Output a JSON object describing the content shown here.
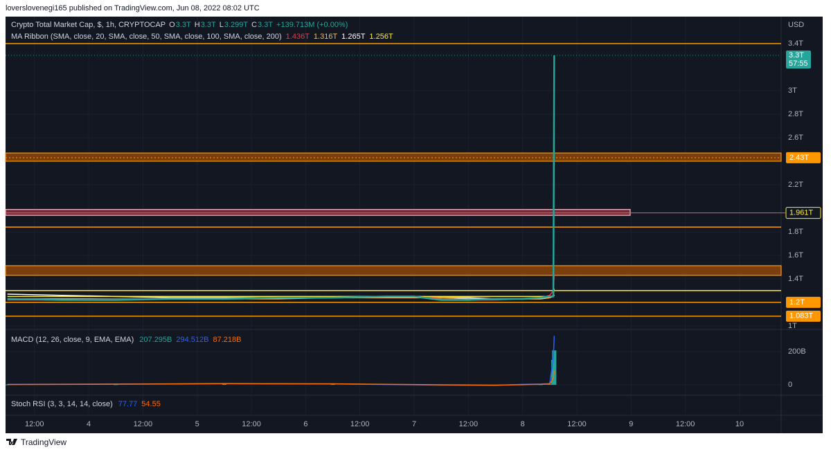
{
  "header": {
    "publisher": "loverslovenegi165 published on TradingView.com, Jun 08, 2022 08:02 UTC"
  },
  "footer": {
    "brand": "TradingView"
  },
  "chart_data": [
    {
      "type": "line",
      "title": "Crypto Total Market Cap, $, 1h, CRYPTOCAP",
      "ohlc": [
        {
          "key": "O",
          "value": "3.3T"
        },
        {
          "key": "H",
          "value": "3.3T"
        },
        {
          "key": "L",
          "value": "3.299T"
        },
        {
          "key": "C",
          "value": "3.3T"
        }
      ],
      "change": "+139.713M (+0.00%)",
      "indicator": "MA Ribbon (SMA, close, 20, SMA, close, 50, SMA, close, 100, SMA, close, 200)",
      "currency": "USD",
      "grid": true,
      "x": [
        6,
        18,
        30,
        42,
        54,
        66,
        78,
        90,
        96,
        102,
        108,
        114,
        120,
        124,
        126,
        126.8,
        127
      ],
      "xlim": [
        5.6,
        177.2
      ],
      "xticks": [
        {
          "value": 12,
          "label": "12:00"
        },
        {
          "value": 24,
          "label": "4"
        },
        {
          "value": 36,
          "label": "12:00"
        },
        {
          "value": 48,
          "label": "5"
        },
        {
          "value": 60,
          "label": "12:00"
        },
        {
          "value": 72,
          "label": "6"
        },
        {
          "value": 84,
          "label": "12:00"
        },
        {
          "value": 96,
          "label": "7"
        },
        {
          "value": 108,
          "label": "12:00"
        },
        {
          "value": 120,
          "label": "8"
        },
        {
          "value": 132,
          "label": "12:00"
        },
        {
          "value": 144,
          "label": "9"
        },
        {
          "value": 156,
          "label": "12:00"
        },
        {
          "value": 168,
          "label": "10"
        }
      ],
      "ylim": [
        0.976,
        3.612
      ],
      "yticks": [
        {
          "value": 1,
          "label": "1T"
        },
        {
          "value": 1.4,
          "label": "1.4T"
        },
        {
          "value": 1.6,
          "label": "1.6T"
        },
        {
          "value": 1.8,
          "label": "1.8T"
        },
        {
          "value": 2.2,
          "label": "2.2T"
        },
        {
          "value": 2.6,
          "label": "2.6T"
        },
        {
          "value": 2.8,
          "label": "2.8T"
        },
        {
          "value": 3,
          "label": "3T"
        },
        {
          "value": 3.4,
          "label": "3.4T"
        }
      ],
      "series": [
        {
          "color": "#ffffff",
          "values": [
            1.27,
            1.26,
            1.25,
            1.24,
            1.24,
            1.24,
            1.24,
            1.24,
            1.24,
            1.24,
            1.24,
            1.23,
            1.23,
            1.23,
            1.24,
            1.25,
            1.265
          ],
          "value_label": "1.265T",
          "order": 2
        },
        {
          "color": "#ffeb3b",
          "values": [
            1.25,
            1.25,
            1.25,
            1.25,
            1.25,
            1.25,
            1.25,
            1.25,
            1.25,
            1.25,
            1.25,
            1.25,
            1.25,
            1.25,
            1.25,
            1.255,
            1.256
          ],
          "value_label": "1.256T",
          "order": 3
        },
        {
          "color": "#ffb74d",
          "values": [
            1.23,
            1.23,
            1.23,
            1.23,
            1.23,
            1.23,
            1.24,
            1.24,
            1.24,
            1.24,
            1.23,
            1.23,
            1.23,
            1.23,
            1.24,
            1.26,
            1.316
          ],
          "value_label": "1.316T",
          "order": 1
        },
        {
          "color": "#f23645",
          "values": [
            1.22,
            1.22,
            1.23,
            1.23,
            1.23,
            1.24,
            1.24,
            1.25,
            1.25,
            1.23,
            1.22,
            1.22,
            1.23,
            1.24,
            1.26,
            1.3,
            1.436
          ],
          "value_label": "1.436T",
          "order": 0
        },
        {
          "color": "#26a69a",
          "values": [
            1.23,
            1.22,
            1.22,
            1.23,
            1.23,
            1.24,
            1.24,
            1.25,
            1.25,
            1.22,
            1.22,
            1.23,
            1.23,
            1.24,
            1.25,
            1.25,
            3.3
          ]
        }
      ],
      "price_label": {
        "value": 3.3,
        "label": "3.3T",
        "countdown": "57:55",
        "color": "#26a69a"
      },
      "levels": [
        {
          "kind": "line",
          "value": 3.4,
          "color": "#ff9800"
        },
        {
          "kind": "band",
          "from": 2.4,
          "to": 2.47,
          "value": 2.43,
          "label": "2.43T",
          "color": "#ff9800"
        },
        {
          "kind": "box",
          "from": 1.94,
          "to": 1.99,
          "value": 1.961,
          "label": "1.961T",
          "color": "#f7525f",
          "end": 143.8
        },
        {
          "kind": "line",
          "value": 1.84,
          "color": "#ff9800"
        },
        {
          "kind": "band",
          "from": 1.43,
          "to": 1.512,
          "color": "#ff9800"
        },
        {
          "kind": "line",
          "value": 1.3,
          "color": "#ffeb3b"
        },
        {
          "kind": "line",
          "value": 1.2,
          "label": "1.2T",
          "color": "#ff9800"
        },
        {
          "kind": "line",
          "value": 1.083,
          "label": "1.083T",
          "color": "#ff9800"
        }
      ]
    },
    {
      "type": "line",
      "title": "MACD (12, 26, close, 9, EMA, EMA)",
      "x": [
        6,
        30,
        54,
        78,
        102,
        114,
        120,
        124,
        126,
        126.8,
        127
      ],
      "ylim": [
        -58,
        329
      ],
      "yticks": [
        0,
        {
          "value": 200,
          "label": "200B"
        }
      ],
      "series": [
        {
          "kind": "histogram",
          "color": "#26a69a",
          "values": [
            2,
            3,
            5,
            4,
            -3,
            -2,
            2,
            3,
            5,
            150,
            207.295
          ],
          "value_label": "207.295B"
        },
        {
          "color": "#2962ff",
          "values": [
            3,
            5,
            8,
            6,
            -2,
            -3,
            3,
            5,
            8,
            160,
            294.512
          ],
          "value_label": "294.512B"
        },
        {
          "color": "#ff6d00",
          "values": [
            2,
            4,
            7,
            6,
            0,
            -2,
            1,
            3,
            5,
            40,
            87.218
          ],
          "value_label": "87.218B"
        }
      ]
    },
    {
      "type": "line",
      "title": "Stoch RSI (3, 3, 14, 14, close)",
      "legend_values": [
        {
          "label": "77.77",
          "color": "#2962ff"
        },
        {
          "label": "54.55",
          "color": "#ff6d00"
        }
      ]
    }
  ]
}
